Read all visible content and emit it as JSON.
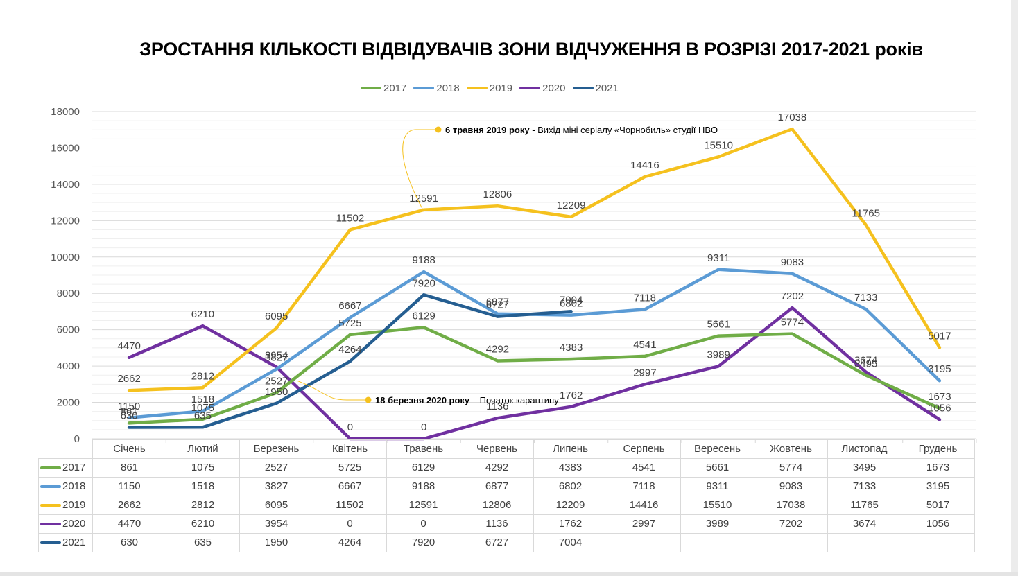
{
  "chart_data": {
    "type": "line",
    "title": "ЗРОСТАННЯ КІЛЬКОСТІ ВІДВІДУВАЧІВ ЗОНИ ВІДЧУЖЕННЯ В РОЗРІЗІ 2017-2021 років",
    "categories": [
      "Січень",
      "Лютий",
      "Березень",
      "Квітень",
      "Травень",
      "Червень",
      "Липень",
      "Серпень",
      "Вересень",
      "Жовтень",
      "Листопад",
      "Грудень"
    ],
    "ylim": [
      0,
      18000
    ],
    "yticks": [
      "0",
      "2000",
      "4000",
      "6000",
      "8000",
      "10000",
      "12000",
      "14000",
      "16000",
      "18000"
    ],
    "grid": true,
    "legend_position": "top",
    "series": [
      {
        "name": "2017",
        "color": "#70ad47",
        "values": [
          861,
          1075,
          2527,
          5725,
          6129,
          4292,
          4383,
          4541,
          5661,
          5774,
          3495,
          1673
        ]
      },
      {
        "name": "2018",
        "color": "#5b9bd5",
        "values": [
          1150,
          1518,
          3827,
          6667,
          9188,
          6877,
          6802,
          7118,
          9311,
          9083,
          7133,
          3195
        ]
      },
      {
        "name": "2019",
        "color": "#f5c11e",
        "values": [
          2662,
          2812,
          6095,
          11502,
          12591,
          12806,
          12209,
          14416,
          15510,
          17038,
          11765,
          5017
        ]
      },
      {
        "name": "2020",
        "color": "#7030a0",
        "values": [
          4470,
          6210,
          3954,
          0,
          0,
          1136,
          1762,
          2997,
          3989,
          7202,
          3674,
          1056
        ]
      },
      {
        "name": "2021",
        "color": "#255e91",
        "values": [
          630,
          635,
          1950,
          4264,
          7920,
          6727,
          7004,
          null,
          null,
          null,
          null,
          null
        ]
      }
    ],
    "annotations": [
      {
        "date_bold": "6 травня 2019 року",
        "text": " - Вихід міні серіалу «Чорнобиль» студії HBO"
      },
      {
        "date_bold": "18 березня 2020 року",
        "text": " – Початок карантину"
      }
    ]
  }
}
